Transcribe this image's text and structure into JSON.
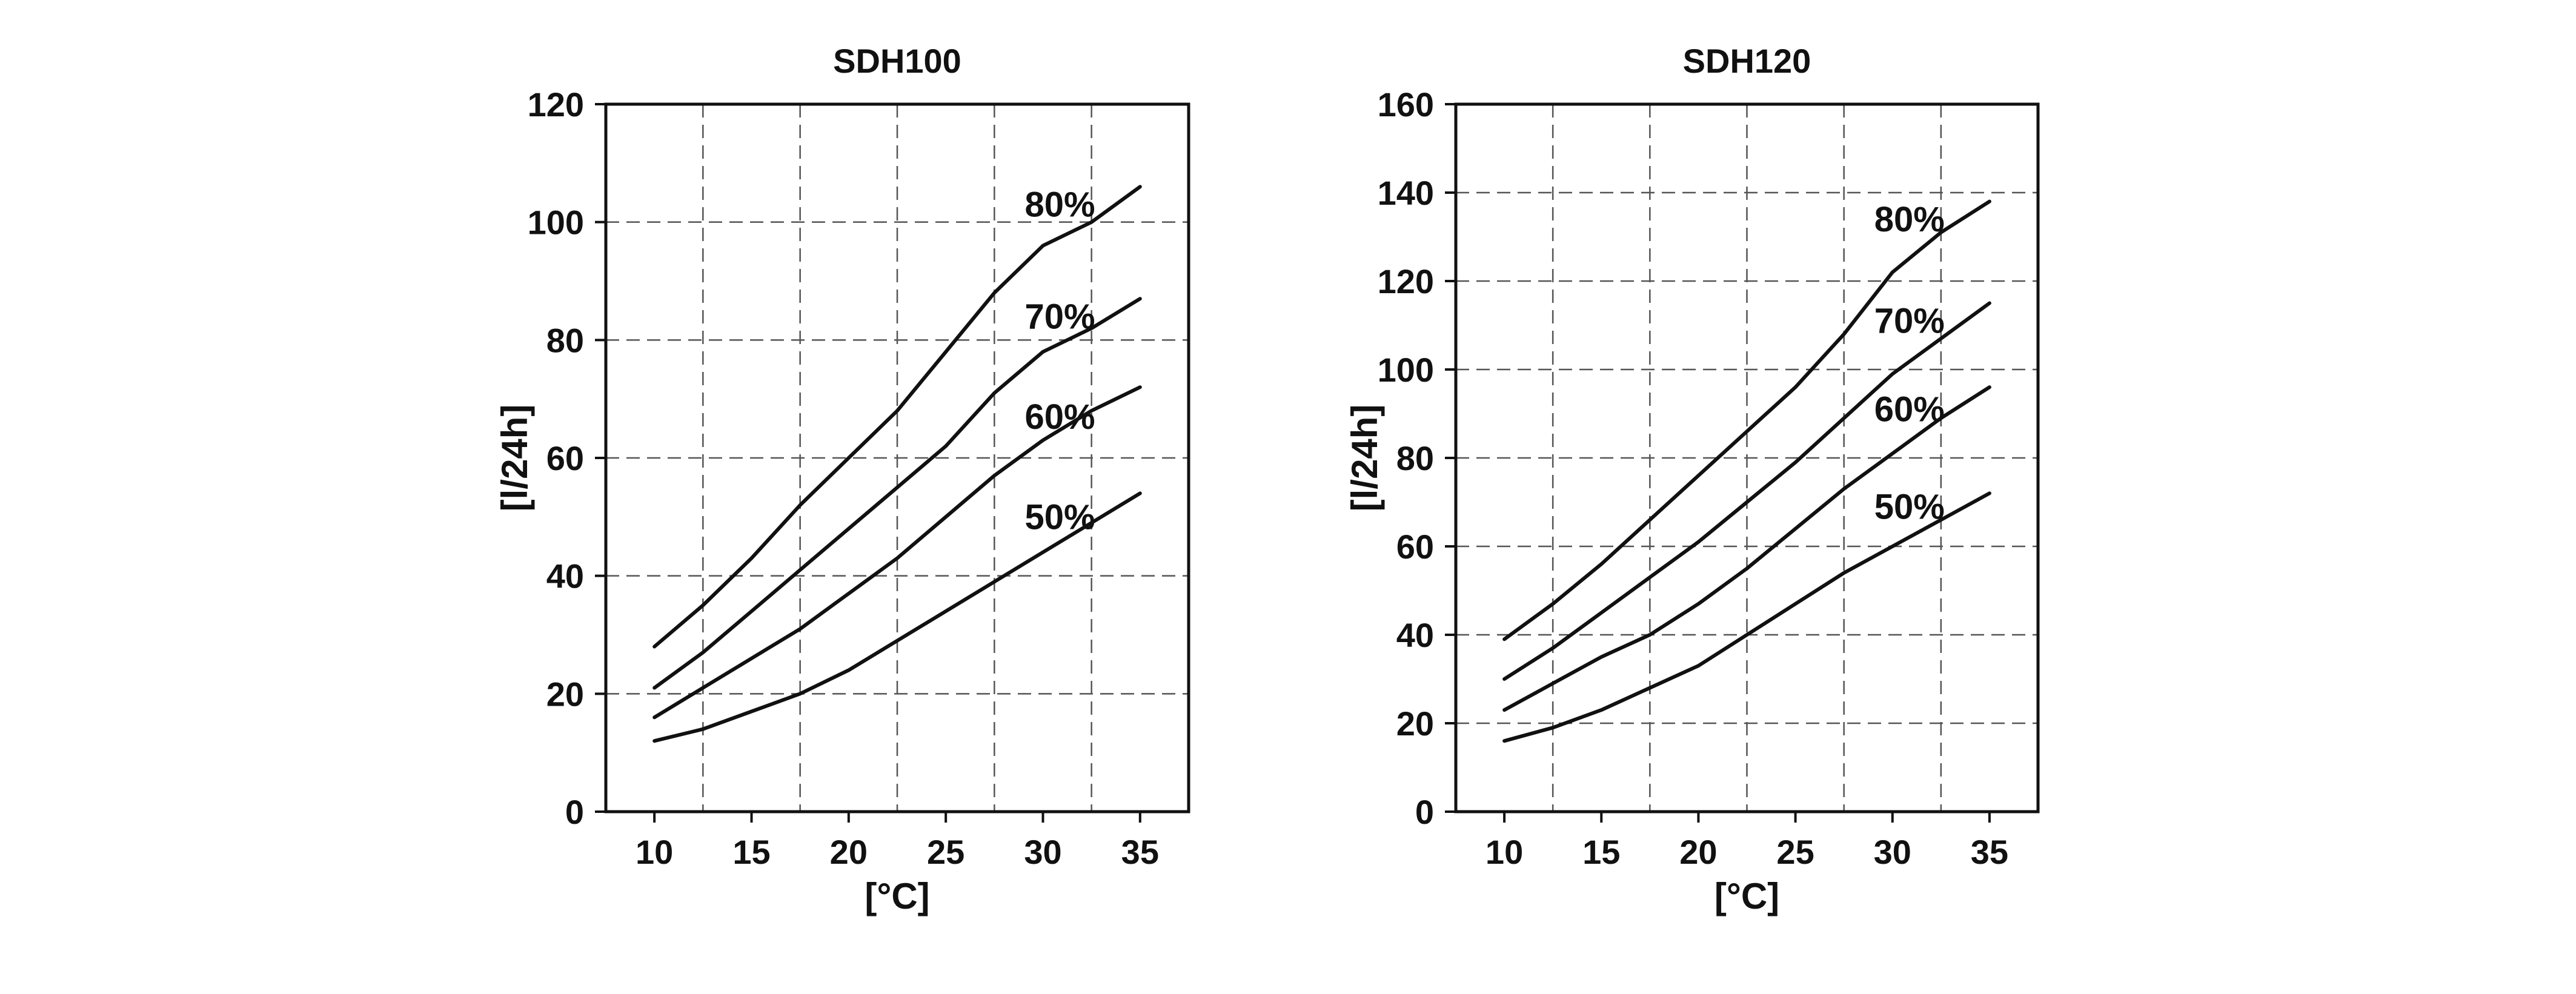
{
  "chart_data": [
    {
      "type": "line",
      "title": "SDH100",
      "xlabel": "[°C]",
      "ylabel": "[l/24h]",
      "xlim": [
        7.5,
        37.5
      ],
      "ylim": [
        0,
        120
      ],
      "xticks": [
        10,
        15,
        20,
        25,
        30,
        35
      ],
      "yticks": [
        0,
        20,
        40,
        60,
        80,
        100,
        120
      ],
      "grid": true,
      "legend": "none",
      "series": [
        {
          "name": "80%",
          "label_at": [
            30,
            103
          ],
          "points": [
            [
              10,
              28
            ],
            [
              12.5,
              35
            ],
            [
              15,
              43
            ],
            [
              17.5,
              52
            ],
            [
              20,
              60
            ],
            [
              22.5,
              68
            ],
            [
              25,
              78
            ],
            [
              27.5,
              88
            ],
            [
              30,
              96
            ],
            [
              32.5,
              100
            ],
            [
              35,
              106
            ]
          ]
        },
        {
          "name": "70%",
          "label_at": [
            30,
            84
          ],
          "points": [
            [
              10,
              21
            ],
            [
              12.5,
              27
            ],
            [
              15,
              34
            ],
            [
              17.5,
              41
            ],
            [
              20,
              48
            ],
            [
              22.5,
              55
            ],
            [
              25,
              62
            ],
            [
              27.5,
              71
            ],
            [
              30,
              78
            ],
            [
              32.5,
              82
            ],
            [
              35,
              87
            ]
          ]
        },
        {
          "name": "60%",
          "label_at": [
            30,
            67
          ],
          "points": [
            [
              10,
              16
            ],
            [
              12.5,
              21
            ],
            [
              15,
              26
            ],
            [
              17.5,
              31
            ],
            [
              20,
              37
            ],
            [
              22.5,
              43
            ],
            [
              25,
              50
            ],
            [
              27.5,
              57
            ],
            [
              30,
              63
            ],
            [
              32.5,
              68
            ],
            [
              35,
              72
            ]
          ]
        },
        {
          "name": "50%",
          "label_at": [
            30,
            50
          ],
          "points": [
            [
              10,
              12
            ],
            [
              12.5,
              14
            ],
            [
              15,
              17
            ],
            [
              17.5,
              20
            ],
            [
              20,
              24
            ],
            [
              22.5,
              29
            ],
            [
              25,
              34
            ],
            [
              27.5,
              39
            ],
            [
              30,
              44
            ],
            [
              32.5,
              49
            ],
            [
              35,
              54
            ]
          ]
        }
      ]
    },
    {
      "type": "line",
      "title": "SDH120",
      "xlabel": "[°C]",
      "ylabel": "[l/24h]",
      "xlim": [
        7.5,
        37.5
      ],
      "ylim": [
        0,
        160
      ],
      "xticks": [
        10,
        15,
        20,
        25,
        30,
        35
      ],
      "yticks": [
        0,
        20,
        40,
        60,
        80,
        100,
        120,
        140,
        160
      ],
      "grid": true,
      "legend": "none",
      "series": [
        {
          "name": "80%",
          "label_at": [
            30,
            134
          ],
          "points": [
            [
              10,
              39
            ],
            [
              12.5,
              47
            ],
            [
              15,
              56
            ],
            [
              17.5,
              66
            ],
            [
              20,
              76
            ],
            [
              22.5,
              86
            ],
            [
              25,
              96
            ],
            [
              27.5,
              108
            ],
            [
              30,
              122
            ],
            [
              32.5,
              131
            ],
            [
              35,
              138
            ]
          ]
        },
        {
          "name": "70%",
          "label_at": [
            30,
            111
          ],
          "points": [
            [
              10,
              30
            ],
            [
              12.5,
              37
            ],
            [
              15,
              45
            ],
            [
              17.5,
              53
            ],
            [
              20,
              61
            ],
            [
              22.5,
              70
            ],
            [
              25,
              79
            ],
            [
              27.5,
              89
            ],
            [
              30,
              99
            ],
            [
              32.5,
              107
            ],
            [
              35,
              115
            ]
          ]
        },
        {
          "name": "60%",
          "label_at": [
            30,
            91
          ],
          "points": [
            [
              10,
              23
            ],
            [
              12.5,
              29
            ],
            [
              15,
              35
            ],
            [
              17.5,
              40
            ],
            [
              20,
              47
            ],
            [
              22.5,
              55
            ],
            [
              25,
              64
            ],
            [
              27.5,
              73
            ],
            [
              30,
              81
            ],
            [
              32.5,
              89
            ],
            [
              35,
              96
            ]
          ]
        },
        {
          "name": "50%",
          "label_at": [
            30,
            69
          ],
          "points": [
            [
              10,
              16
            ],
            [
              12.5,
              19
            ],
            [
              15,
              23
            ],
            [
              17.5,
              28
            ],
            [
              20,
              33
            ],
            [
              22.5,
              40
            ],
            [
              25,
              47
            ],
            [
              27.5,
              54
            ],
            [
              30,
              60
            ],
            [
              32.5,
              66
            ],
            [
              35,
              72
            ]
          ]
        }
      ]
    }
  ]
}
